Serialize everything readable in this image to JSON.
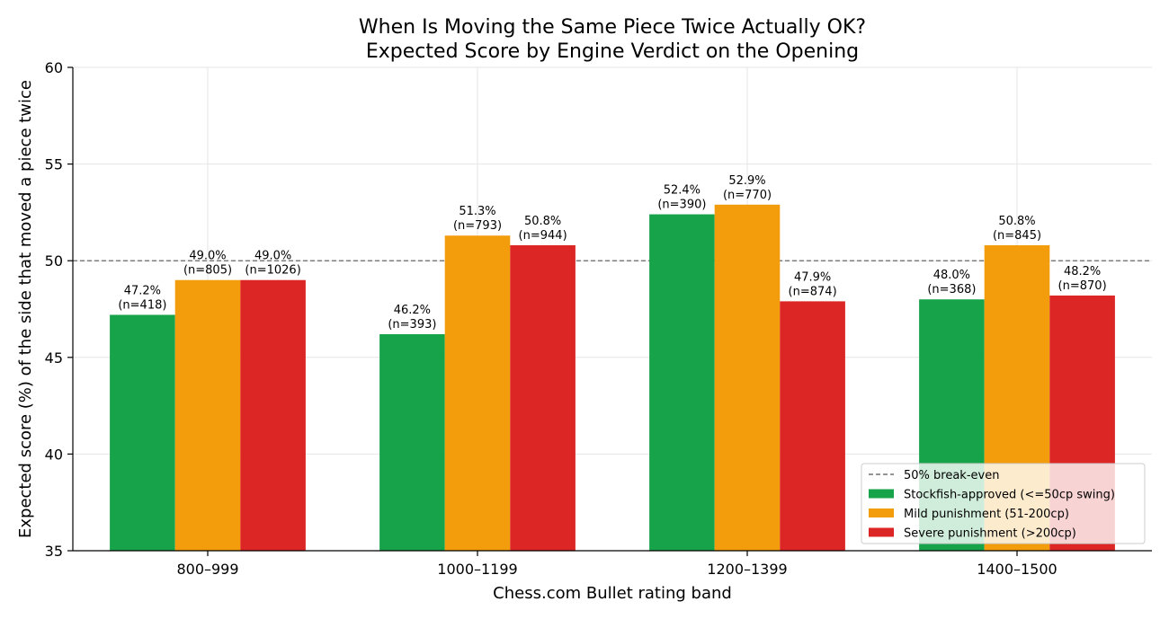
{
  "chart_data": {
    "type": "bar",
    "title_lines": [
      "When Is Moving the Same Piece Twice Actually OK?",
      "Expected Score by Engine Verdict on the Opening"
    ],
    "xlabel": "Chess.com Bullet rating band",
    "ylabel": "Expected score (%) of the side that moved a piece twice",
    "ylim": [
      35,
      60
    ],
    "yticks": [
      35,
      40,
      45,
      50,
      55,
      60
    ],
    "grid": true,
    "categories": [
      "800–999",
      "1000–1199",
      "1200–1399",
      "1400–1500"
    ],
    "series": [
      {
        "name": "Stockfish-approved (<=50cp swing)",
        "color": "#17a34a",
        "values": [
          47.2,
          46.2,
          52.4,
          48.0
        ],
        "labels": [
          "47.2%",
          "46.2%",
          "52.4%",
          "48.0%"
        ],
        "n_labels": [
          "(n=418)",
          "(n=393)",
          "(n=390)",
          "(n=368)"
        ]
      },
      {
        "name": "Mild punishment (51-200cp)",
        "color": "#f39c0c",
        "values": [
          49.0,
          51.3,
          52.9,
          50.8
        ],
        "labels": [
          "49.0%",
          "51.3%",
          "52.9%",
          "50.8%"
        ],
        "n_labels": [
          "(n=805)",
          "(n=793)",
          "(n=770)",
          "(n=845)"
        ]
      },
      {
        "name": "Severe punishment (>200cp)",
        "color": "#dc2626",
        "values": [
          49.0,
          50.8,
          47.9,
          48.2
        ],
        "labels": [
          "49.0%",
          "50.8%",
          "47.9%",
          "48.2%"
        ],
        "n_labels": [
          "(n=1026)",
          "(n=944)",
          "(n=874)",
          "(n=870)"
        ]
      }
    ],
    "reference_line": {
      "value": 50,
      "name": "50% break-even",
      "color": "#555555"
    },
    "legend_position": "lower-right"
  }
}
